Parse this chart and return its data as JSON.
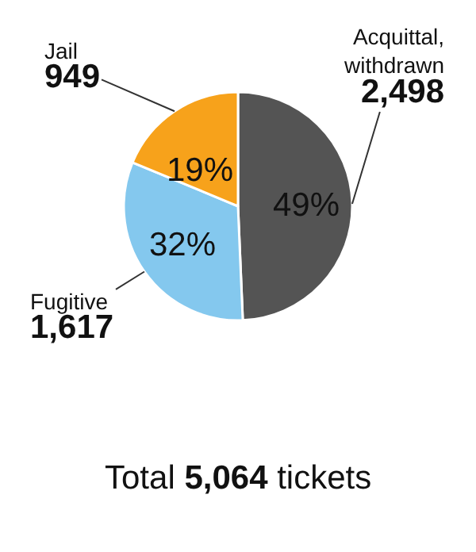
{
  "chart_data": {
    "type": "pie",
    "categories": [
      "Acquittal, withdrawn",
      "Fugitive",
      "Jail"
    ],
    "values": [
      2498,
      1617,
      949
    ],
    "colors": [
      "#545454",
      "#84c8ee",
      "#f7a21b"
    ],
    "value_labels": [
      "2,498",
      "1,617",
      "949"
    ],
    "annotations": [
      {
        "text": "49%",
        "x": "Acquittal, withdrawn"
      },
      {
        "text": "32%",
        "x": "Fugitive"
      },
      {
        "text": "19%",
        "x": "Jail"
      },
      "Total 5,064 tickets"
    ]
  }
}
